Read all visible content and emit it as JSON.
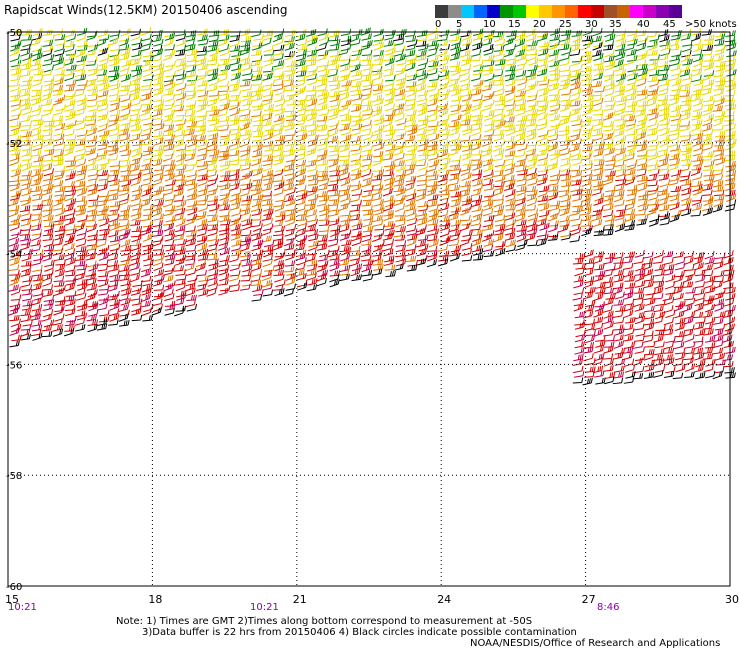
{
  "title": "Rapidscat Winds(12.5KM) 20150406 ascending",
  "legend": {
    "labels": [
      "0",
      "5",
      "10",
      "15",
      "20",
      "25",
      "30",
      "35",
      "40",
      "45",
      ">50 knots"
    ],
    "colors": [
      "#3c3c3c",
      "#8c8c8c",
      "#00c8ff",
      "#0064ff",
      "#0000c8",
      "#009600",
      "#00c800",
      "#ffff00",
      "#ffc800",
      "#ff9600",
      "#ff6400",
      "#ff0000",
      "#c80000",
      "#a05028",
      "#c86400",
      "#ff00ff",
      "#c800c8",
      "#8c00b4",
      "#5a0096"
    ]
  },
  "map": {
    "lat_labels": [
      "-50",
      "-52",
      "-54",
      "-56",
      "-58",
      "-60"
    ],
    "lon_labels": [
      "15",
      "18",
      "21",
      "24",
      "27",
      "30"
    ],
    "time_labels": [
      "10:21",
      "10:21",
      "8:46"
    ]
  },
  "notes": {
    "line1": "Note: 1) Times are GMT 2)Times along bottom correspond to measurement at -50S",
    "line2": "3)Data buffer is 22 hrs from 20150406 4) Black circles indicate possible contamination",
    "line3": "NOAA/NESDIS/Office of Research and Applications"
  },
  "colors": {
    "time_label": "#8800aa",
    "grid": "#000000",
    "wind_green": "#007a00",
    "wind_yellow": "#e6d800",
    "wind_orange": "#e07800",
    "wind_red": "#d40000",
    "wind_magenta": "#c0004a",
    "wind_black": "#000000"
  }
}
